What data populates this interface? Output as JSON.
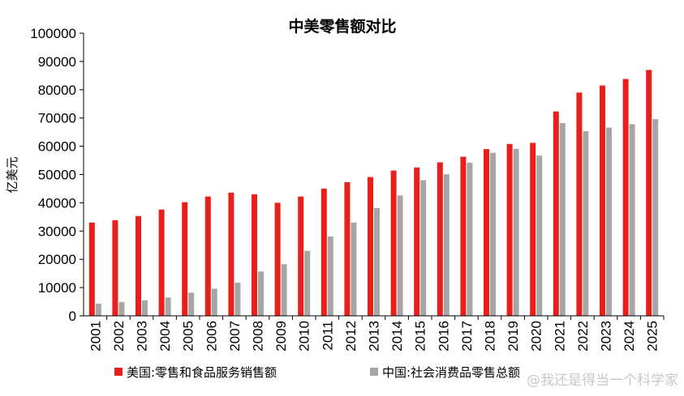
{
  "chart_data": {
    "type": "bar",
    "title": "中美零售额对比",
    "ylabel": "亿美元",
    "xlabel": "",
    "ylim": [
      0,
      100000
    ],
    "yticks": [
      0,
      10000,
      20000,
      30000,
      40000,
      50000,
      60000,
      70000,
      80000,
      90000,
      100000
    ],
    "grid": false,
    "legend_position": "bottom",
    "categories": [
      "2001",
      "2002",
      "2003",
      "2004",
      "2005",
      "2006",
      "2007",
      "2008",
      "2009",
      "2010",
      "2011",
      "2012",
      "2013",
      "2014",
      "2015",
      "2016",
      "2017",
      "2018",
      "2019",
      "2020",
      "2021",
      "2022",
      "2023",
      "2024",
      "2025"
    ],
    "series": [
      {
        "name": "美国:零售和食品服务销售额",
        "color": "#e8201c",
        "values": [
          33000,
          33800,
          35300,
          37600,
          40200,
          42200,
          43600,
          43000,
          40000,
          42200,
          45000,
          47300,
          49100,
          51400,
          52500,
          54300,
          56300,
          59000,
          60800,
          61200,
          72300,
          79000,
          81500,
          83800,
          87000
        ]
      },
      {
        "name": "中国:社会消费品零售总额",
        "color": "#a6a6a6",
        "values": [
          4300,
          4900,
          5500,
          6500,
          8200,
          9600,
          11700,
          15700,
          18300,
          23000,
          28100,
          33000,
          38100,
          42600,
          48000,
          50100,
          54200,
          57700,
          59100,
          56700,
          68200,
          65300,
          66600,
          67800,
          69600
        ]
      }
    ]
  },
  "watermark": "@我还是得当一个科学家"
}
